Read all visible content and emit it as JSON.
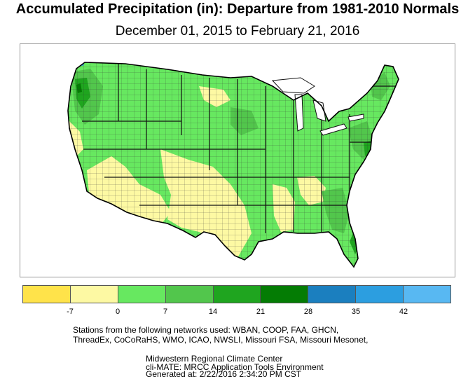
{
  "title": "Accumulated Precipitation (in): Departure from 1981-2010 Normals",
  "subtitle": "December 01, 2015 to February 21, 2016",
  "legend": {
    "colors": [
      "#ffe34a",
      "#fdf9a3",
      "#67e860",
      "#52c64c",
      "#1fa51f",
      "#047c04",
      "#1b7fbf",
      "#2c9ee0",
      "#58b8f2"
    ],
    "ticks": [
      "-7",
      "0",
      "7",
      "14",
      "21",
      "28",
      "35",
      "42"
    ]
  },
  "map_colors": {
    "wet": "#67e860",
    "wetter": "#52c64c",
    "wettest": "#1fa51f",
    "very_wet": "#047c04",
    "dry": "#fdf9a3",
    "blue": "#2c9ee0"
  },
  "footer": {
    "networks_line1": "Stations from the following networks used: WBAN, COOP, FAA, GHCN,",
    "networks_line2": "ThreadEx, CoCoRaHS, WMO, ICAO, NWSLI, Missouri FSA, Missouri Mesonet,",
    "org": "Midwestern Regional Climate Center",
    "app": "cli-MATE: MRCC Application Tools Environment",
    "generated": "Generated at: 2/22/2016 2:34:20 PM CST"
  }
}
